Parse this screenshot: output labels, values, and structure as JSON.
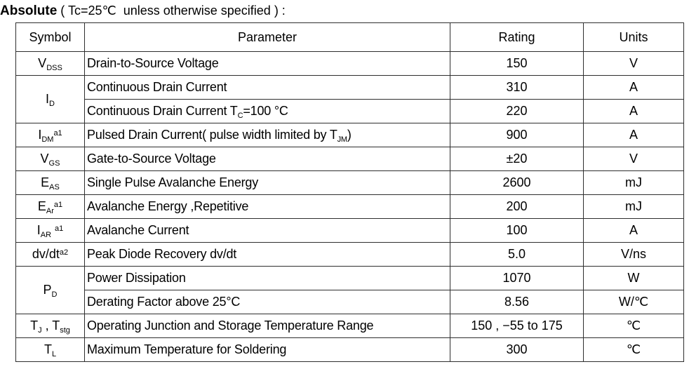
{
  "title": {
    "bold": "Absolute",
    "rest": " ( Tc=25℃  unless otherwise specified ) :"
  },
  "table": {
    "headers": [
      "Symbol",
      "Parameter",
      "Rating",
      "Units"
    ],
    "rows": [
      {
        "symbol": [
          {
            "t": "text",
            "v": "V"
          },
          {
            "t": "sub",
            "v": "DSS"
          }
        ],
        "rowspan": 1,
        "parameter": [
          {
            "t": "text",
            "v": "Drain-to-Source Voltage"
          }
        ],
        "rating": "150",
        "units": "V"
      },
      {
        "symbol": [
          {
            "t": "text",
            "v": "I"
          },
          {
            "t": "sub",
            "v": "D"
          }
        ],
        "rowspan": 2,
        "parameter": [
          {
            "t": "text",
            "v": "Continuous Drain Current"
          }
        ],
        "rating": "310",
        "units": "A"
      },
      {
        "symbol": null,
        "parameter": [
          {
            "t": "text",
            "v": "Continuous Drain Current T"
          },
          {
            "t": "sub",
            "v": "C"
          },
          {
            "t": "text",
            "v": "=100 °C"
          }
        ],
        "rating": "220",
        "units": "A"
      },
      {
        "symbol": [
          {
            "t": "text",
            "v": "I"
          },
          {
            "t": "sub",
            "v": "DM"
          },
          {
            "t": "sup",
            "v": "a1"
          }
        ],
        "rowspan": 1,
        "parameter": [
          {
            "t": "text",
            "v": "Pulsed Drain Current( pulse width limited by T"
          },
          {
            "t": "sub",
            "v": "JM"
          },
          {
            "t": "text",
            "v": ")"
          }
        ],
        "rating": "900",
        "units": "A"
      },
      {
        "symbol": [
          {
            "t": "text",
            "v": "V"
          },
          {
            "t": "sub",
            "v": "GS"
          }
        ],
        "rowspan": 1,
        "parameter": [
          {
            "t": "text",
            "v": "Gate-to-Source Voltage"
          }
        ],
        "rating": "±20",
        "units": "V"
      },
      {
        "symbol": [
          {
            "t": "text",
            "v": "E"
          },
          {
            "t": "sub",
            "v": "AS"
          }
        ],
        "rowspan": 1,
        "parameter": [
          {
            "t": "text",
            "v": "Single Pulse Avalanche Energy"
          }
        ],
        "rating": "2600",
        "units": "mJ"
      },
      {
        "symbol": [
          {
            "t": "text",
            "v": "E"
          },
          {
            "t": "sub",
            "v": "Ar"
          },
          {
            "t": "sup",
            "v": "a1"
          }
        ],
        "rowspan": 1,
        "parameter": [
          {
            "t": "text",
            "v": "Avalanche Energy ,Repetitive"
          }
        ],
        "rating": "200",
        "units": "mJ"
      },
      {
        "symbol": [
          {
            "t": "text",
            "v": "I"
          },
          {
            "t": "sub",
            "v": "AR"
          },
          {
            "t": "text",
            "v": " "
          },
          {
            "t": "sup",
            "v": "a1"
          }
        ],
        "rowspan": 1,
        "parameter": [
          {
            "t": "text",
            "v": "Avalanche Current"
          }
        ],
        "rating": "100",
        "units": "A"
      },
      {
        "symbol": [
          {
            "t": "text",
            "v": "dv/dt"
          },
          {
            "t": "sup",
            "v": "a2"
          }
        ],
        "rowspan": 1,
        "parameter": [
          {
            "t": "text",
            "v": "Peak Diode Recovery dv/dt"
          }
        ],
        "rating": "5.0",
        "units": "V/ns"
      },
      {
        "symbol": [
          {
            "t": "text",
            "v": "P"
          },
          {
            "t": "sub",
            "v": "D"
          }
        ],
        "rowspan": 2,
        "parameter": [
          {
            "t": "text",
            "v": "Power Dissipation"
          }
        ],
        "rating": "1070",
        "units": "W"
      },
      {
        "symbol": null,
        "parameter": [
          {
            "t": "text",
            "v": "Derating Factor above 25°C"
          }
        ],
        "rating": "8.56",
        "units": "W/℃"
      },
      {
        "symbol": [
          {
            "t": "text",
            "v": "T"
          },
          {
            "t": "sub",
            "v": "J"
          },
          {
            "t": "text",
            "v": " , T"
          },
          {
            "t": "sub",
            "v": "stg"
          }
        ],
        "rowspan": 1,
        "parameter": [
          {
            "t": "text",
            "v": "Operating Junction and Storage Temperature Range"
          }
        ],
        "rating": "150 , −55 to 175",
        "units": "℃"
      },
      {
        "symbol": [
          {
            "t": "text",
            "v": "T"
          },
          {
            "t": "sub",
            "v": "L"
          }
        ],
        "rowspan": 1,
        "parameter": [
          {
            "t": "text",
            "v": "Maximum Temperature for Soldering"
          }
        ],
        "rating": "300",
        "units": "℃"
      }
    ]
  },
  "colors": {
    "background": "#ffffff",
    "text": "#000000",
    "border": "#2e2e2e"
  }
}
